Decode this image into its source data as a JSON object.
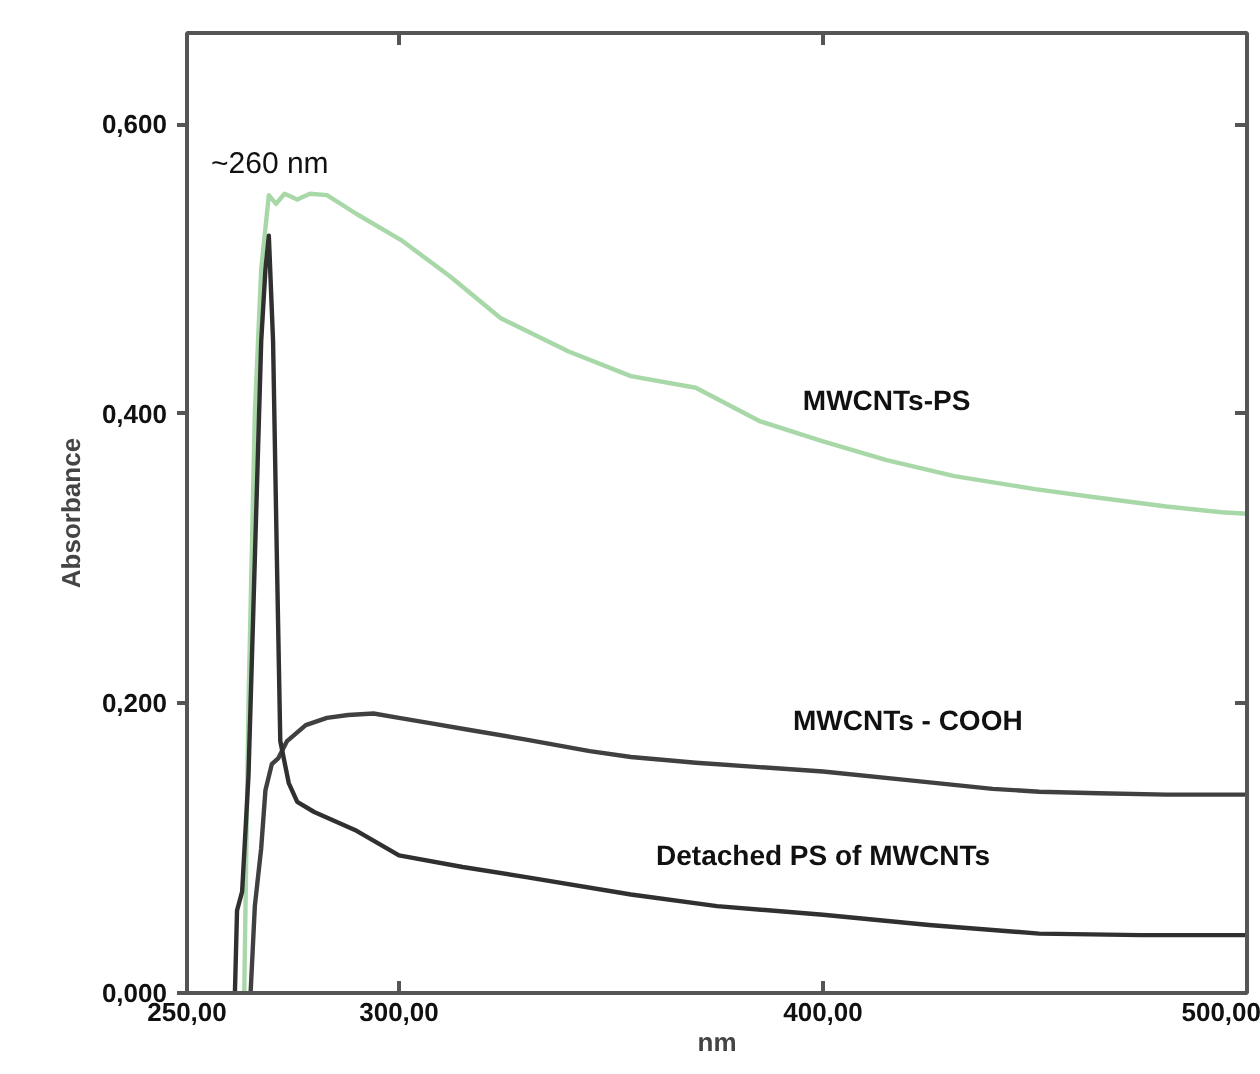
{
  "chart_data": {
    "type": "line",
    "xlabel": "nm",
    "ylabel": "Absorbance",
    "xlim": [
      250,
      500
    ],
    "ylim": [
      0,
      0.663
    ],
    "xticks": [
      {
        "value": 250,
        "label": "250,00"
      },
      {
        "value": 300,
        "label": "300,00"
      },
      {
        "value": 400,
        "label": "400,00"
      },
      {
        "value": 500,
        "label": "500,00"
      }
    ],
    "yticks": [
      {
        "value": 0,
        "label": "0,000"
      },
      {
        "value": 0.2,
        "label": "0,200"
      },
      {
        "value": 0.4,
        "label": "0,400"
      },
      {
        "value": 0.6,
        "label": "0,600"
      }
    ],
    "grid": false,
    "legend": false,
    "marker": "none",
    "line_style": "solid",
    "series": [
      {
        "name": "MWCNTs-PS",
        "color": "#a8d8a8",
        "x": [
          263.5,
          264.5,
          266,
          267.5,
          269.3,
          271,
          273,
          276,
          279,
          283,
          290,
          300.5,
          312,
          324,
          340,
          354.7,
          370,
          385,
          400,
          415,
          431,
          450,
          465,
          481,
          494,
          500
        ],
        "values": [
          0,
          0.2,
          0.4,
          0.5,
          0.551,
          0.545,
          0.552,
          0.548,
          0.552,
          0.551,
          0.538,
          0.52,
          0.495,
          0.466,
          0.443,
          0.426,
          0.418,
          0.395,
          0.381,
          0.368,
          0.357,
          0.348,
          0.342,
          0.336,
          0.332,
          0.331
        ]
      },
      {
        "name": "MWCNTs - COOH",
        "color": "#404040",
        "x": [
          265,
          266,
          267.5,
          268.5,
          270,
          271.5,
          273.6,
          278,
          283,
          288,
          294,
          300,
          308,
          316,
          330,
          345,
          354.7,
          370,
          385,
          400,
          420,
          440,
          451,
          465,
          481,
          500
        ],
        "values": [
          0,
          0.06,
          0.1,
          0.14,
          0.158,
          0.162,
          0.174,
          0.185,
          0.19,
          0.192,
          0.193,
          0.19,
          0.186,
          0.182,
          0.175,
          0.167,
          0.163,
          0.159,
          0.156,
          0.153,
          0.147,
          0.141,
          0.139,
          0.138,
          0.137,
          0.137
        ]
      },
      {
        "name": "Detached PS of MWCNTs",
        "color": "#303030",
        "x": [
          261.3,
          261.8,
          263,
          264.5,
          266,
          267.5,
          268.5,
          269.3,
          270.3,
          271.2,
          272,
          274,
          276,
          280,
          290,
          300,
          315,
          330,
          354.7,
          375,
          400,
          425,
          451,
          475,
          500
        ],
        "values": [
          0,
          0.057,
          0.07,
          0.15,
          0.3,
          0.45,
          0.5,
          0.523,
          0.45,
          0.3,
          0.174,
          0.145,
          0.132,
          0.125,
          0.112,
          0.095,
          0.087,
          0.08,
          0.068,
          0.06,
          0.054,
          0.047,
          0.041,
          0.04,
          0.04
        ]
      }
    ],
    "annotations": [
      "~260 nm"
    ]
  }
}
